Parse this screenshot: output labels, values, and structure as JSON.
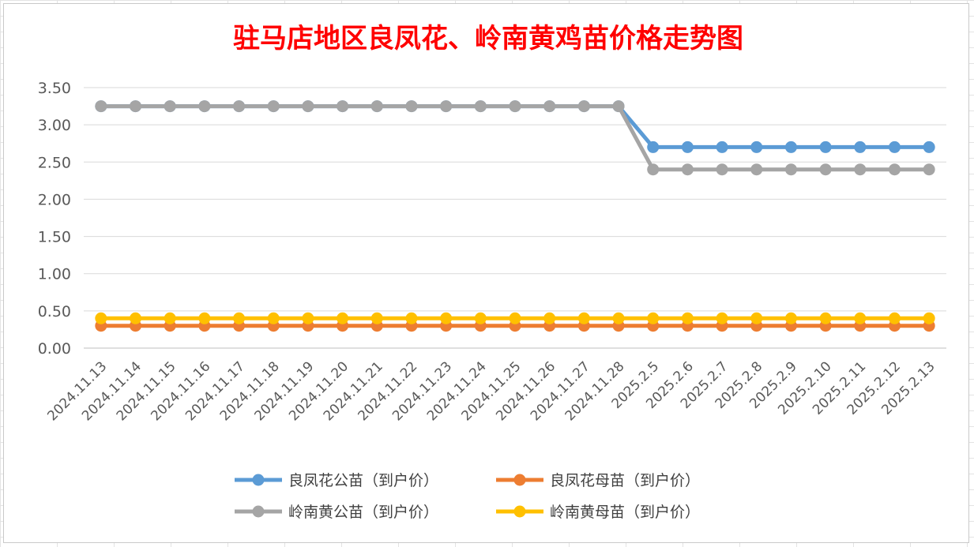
{
  "chart_data": {
    "type": "line",
    "title": "驻马店地区良凤花、岭南黄鸡苗价格走势图",
    "xlabel": "",
    "ylabel": "",
    "ylim": [
      0,
      3.5
    ],
    "yticks": [
      "0.00",
      "0.50",
      "1.00",
      "1.50",
      "2.00",
      "2.50",
      "3.00",
      "3.50"
    ],
    "grid": true,
    "legend_position": "bottom",
    "categories": [
      "2024.11.13",
      "2024.11.14",
      "2024.11.15",
      "2024.11.16",
      "2024.11.17",
      "2024.11.18",
      "2024.11.19",
      "2024.11.20",
      "2024.11.21",
      "2024.11.22",
      "2024.11.23",
      "2024.11.24",
      "2024.11.25",
      "2024.11.26",
      "2024.11.27",
      "2024.11.28",
      "2025.2.5",
      "2025.2.6",
      "2025.2.7",
      "2025.2.8",
      "2025.2.9",
      "2025.2.10",
      "2025.2.11",
      "2025.2.12",
      "2025.2.13"
    ],
    "series": [
      {
        "name": "良凤花公苗（到户价）",
        "color": "#5b9bd5",
        "values": [
          3.25,
          3.25,
          3.25,
          3.25,
          3.25,
          3.25,
          3.25,
          3.25,
          3.25,
          3.25,
          3.25,
          3.25,
          3.25,
          3.25,
          3.25,
          3.25,
          2.7,
          2.7,
          2.7,
          2.7,
          2.7,
          2.7,
          2.7,
          2.7,
          2.7
        ]
      },
      {
        "name": "良凤花母苗（到户价）",
        "color": "#ed7d31",
        "values": [
          0.3,
          0.3,
          0.3,
          0.3,
          0.3,
          0.3,
          0.3,
          0.3,
          0.3,
          0.3,
          0.3,
          0.3,
          0.3,
          0.3,
          0.3,
          0.3,
          0.3,
          0.3,
          0.3,
          0.3,
          0.3,
          0.3,
          0.3,
          0.3,
          0.3
        ]
      },
      {
        "name": "岭南黄公苗（到户价）",
        "color": "#a5a5a5",
        "values": [
          3.25,
          3.25,
          3.25,
          3.25,
          3.25,
          3.25,
          3.25,
          3.25,
          3.25,
          3.25,
          3.25,
          3.25,
          3.25,
          3.25,
          3.25,
          3.25,
          2.4,
          2.4,
          2.4,
          2.4,
          2.4,
          2.4,
          2.4,
          2.4,
          2.4
        ]
      },
      {
        "name": "岭南黄母苗（到户价）",
        "color": "#ffc000",
        "values": [
          0.4,
          0.4,
          0.4,
          0.4,
          0.4,
          0.4,
          0.4,
          0.4,
          0.4,
          0.4,
          0.4,
          0.4,
          0.4,
          0.4,
          0.4,
          0.4,
          0.4,
          0.4,
          0.4,
          0.4,
          0.4,
          0.4,
          0.4,
          0.4,
          0.4
        ]
      }
    ],
    "draw_order": [
      1,
      3,
      0,
      2
    ]
  }
}
